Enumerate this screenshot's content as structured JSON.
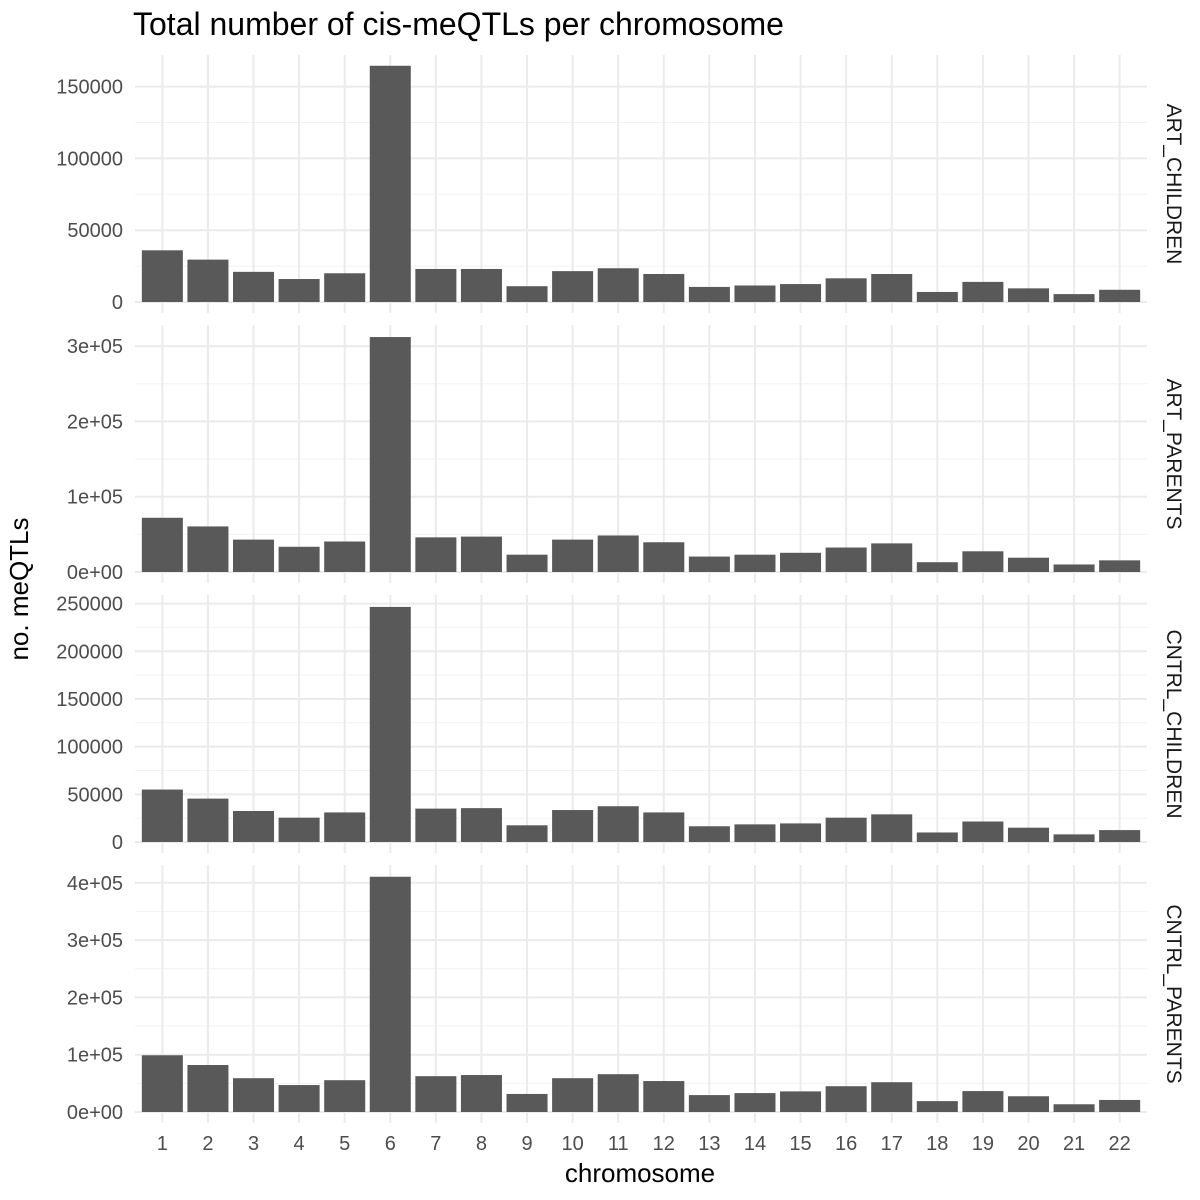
{
  "chart_data": {
    "type": "bar",
    "title": "Total number of cis-meQTLs per chromosome",
    "xlabel": "chromosome",
    "ylabel": "no. meQTLs",
    "categories": [
      "1",
      "2",
      "3",
      "4",
      "5",
      "6",
      "7",
      "8",
      "9",
      "10",
      "11",
      "12",
      "13",
      "14",
      "15",
      "16",
      "17",
      "18",
      "19",
      "20",
      "21",
      "22"
    ],
    "bar_color": "#595959",
    "grid": true,
    "panels": [
      {
        "name": "ART_CHILDREN",
        "ylim": [
          0,
          172000
        ],
        "yticks": [
          0,
          50000,
          100000,
          150000
        ],
        "ytick_labels": [
          "0",
          "50000",
          "100000",
          "150000"
        ],
        "values": [
          36000,
          29500,
          21000,
          16000,
          20000,
          164500,
          23000,
          23000,
          11000,
          21500,
          23500,
          19500,
          10500,
          11500,
          12500,
          16500,
          19500,
          7000,
          14000,
          9500,
          5500,
          8500
        ]
      },
      {
        "name": "ART_PARENTS",
        "ylim": [
          0,
          328000
        ],
        "yticks": [
          0,
          100000,
          200000,
          300000
        ],
        "ytick_labels": [
          "0e+00",
          "1e+05",
          "2e+05",
          "3e+05"
        ],
        "values": [
          72000,
          60500,
          43000,
          33500,
          40500,
          312000,
          46000,
          47000,
          23000,
          43000,
          48500,
          39500,
          20500,
          23000,
          25500,
          32500,
          38000,
          13000,
          27500,
          19000,
          10000,
          15500
        ]
      },
      {
        "name": "CNTRL_CHILDREN",
        "ylim": [
          0,
          259000
        ],
        "yticks": [
          0,
          50000,
          100000,
          150000,
          200000,
          250000
        ],
        "ytick_labels": [
          "0",
          "50000",
          "100000",
          "150000",
          "200000",
          "250000"
        ],
        "values": [
          55000,
          45500,
          32500,
          25500,
          31000,
          246500,
          35000,
          35500,
          17500,
          33500,
          37500,
          31000,
          16500,
          18500,
          19500,
          25500,
          29000,
          10000,
          21500,
          15000,
          8000,
          12500
        ]
      },
      {
        "name": "CNTRL_PARENTS",
        "ylim": [
          0,
          431000
        ],
        "yticks": [
          0,
          100000,
          200000,
          300000,
          400000
        ],
        "ytick_labels": [
          "0e+00",
          "1e+05",
          "2e+05",
          "3e+05",
          "4e+05"
        ],
        "values": [
          99000,
          82000,
          59000,
          47000,
          55500,
          410500,
          62500,
          64500,
          31500,
          59000,
          66000,
          54000,
          29500,
          33000,
          36000,
          45000,
          52000,
          19000,
          36500,
          27500,
          13500,
          21000
        ]
      }
    ]
  }
}
